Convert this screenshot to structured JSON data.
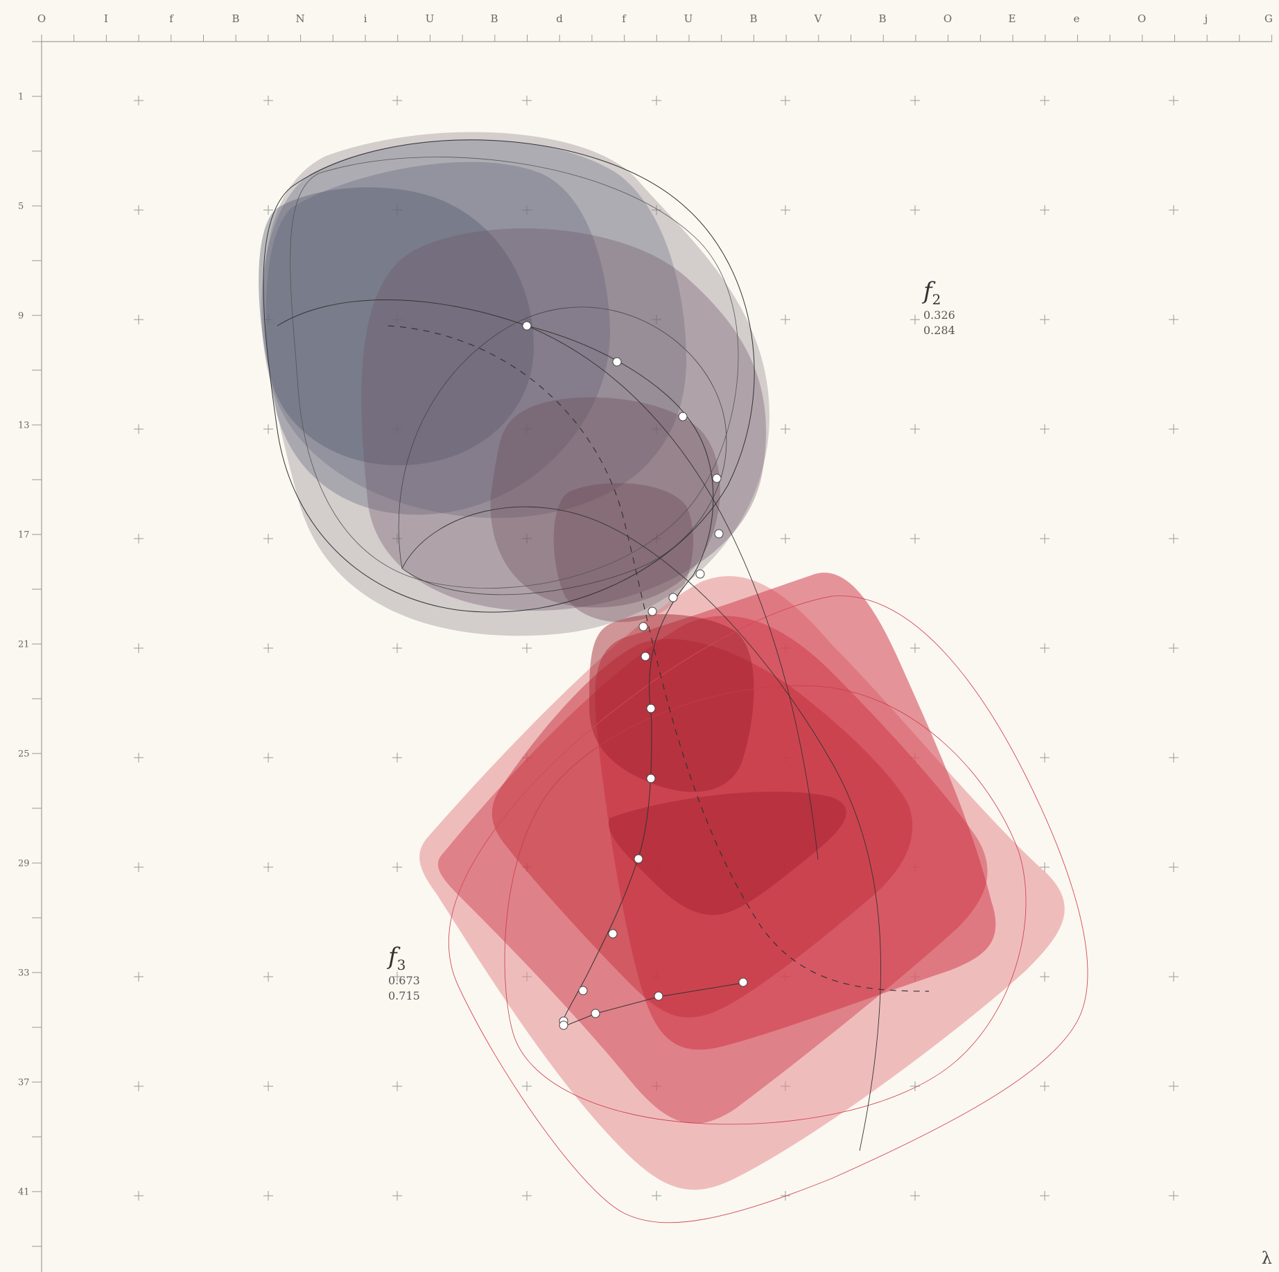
{
  "top_ticks": [
    "O",
    "I",
    "f",
    "B",
    "N",
    "i",
    "U",
    "B",
    "d",
    "f",
    "U",
    "B",
    "V",
    "B",
    "O",
    "E",
    "e",
    "O",
    "j",
    "G"
  ],
  "left_ticks": [
    "1",
    "5",
    "9",
    "13",
    "17",
    "21",
    "25",
    "29",
    "33",
    "37",
    "41"
  ],
  "labels": {
    "f2": {
      "name": "f",
      "sub": "2",
      "v1": "0.326",
      "v2": "0.284"
    },
    "f3": {
      "name": "f",
      "sub": "3",
      "v1": "0.673",
      "v2": "0.715"
    }
  },
  "corner_symbol": "λ",
  "colors": {
    "background": "#fbf8f1",
    "slate": "#5f6478",
    "mauve": "#7b6474",
    "red": "#c8283a",
    "pink": "#e58a90",
    "ink": "#333333"
  }
}
